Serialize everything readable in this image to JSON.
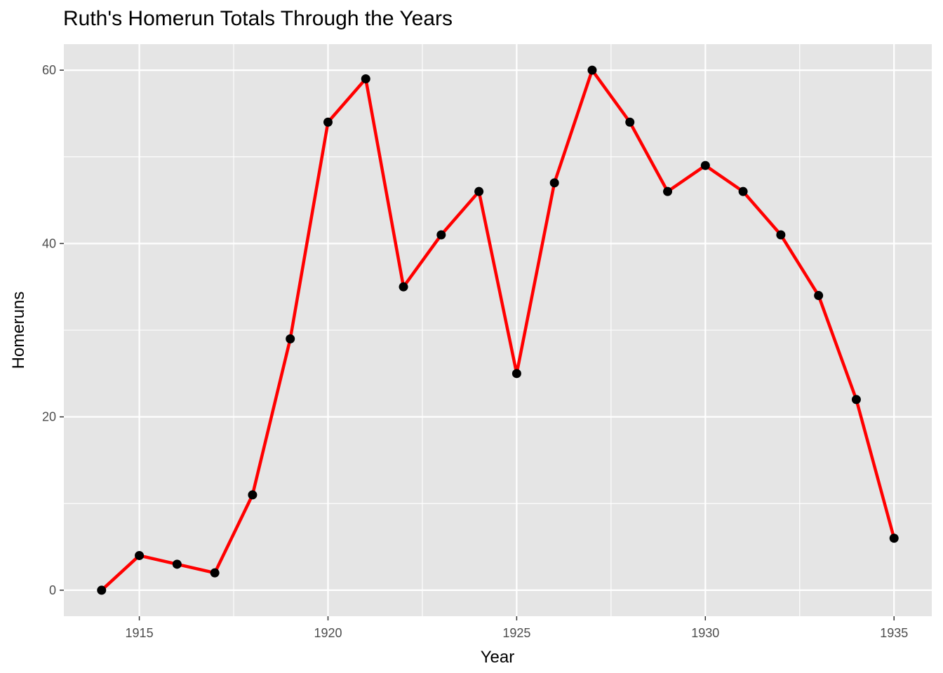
{
  "chart_data": {
    "type": "line",
    "title": "Ruth's Homerun Totals Through the Years",
    "xlabel": "Year",
    "ylabel": "Homeruns",
    "xlim": [
      1913,
      1936
    ],
    "ylim": [
      -3,
      63
    ],
    "xticks": [
      1915,
      1920,
      1925,
      1930,
      1935
    ],
    "yticks": [
      0,
      20,
      40,
      60
    ],
    "x_minor_ticks": [
      1917.5,
      1922.5,
      1927.5,
      1932.5
    ],
    "y_minor_ticks": [
      10,
      30,
      50
    ],
    "grid": true,
    "background": "#e5e5e5",
    "line_color": "#ff0000",
    "point_color": "#000000",
    "series": [
      {
        "x": [
          1914,
          1915,
          1916,
          1917,
          1918,
          1919,
          1920,
          1921,
          1922,
          1923,
          1924,
          1925,
          1926,
          1927,
          1928,
          1929,
          1930,
          1931,
          1932,
          1933,
          1934,
          1935
        ],
        "values": [
          0,
          4,
          3,
          2,
          11,
          29,
          54,
          59,
          35,
          41,
          46,
          25,
          47,
          60,
          54,
          46,
          49,
          46,
          41,
          34,
          22,
          6
        ]
      }
    ]
  }
}
